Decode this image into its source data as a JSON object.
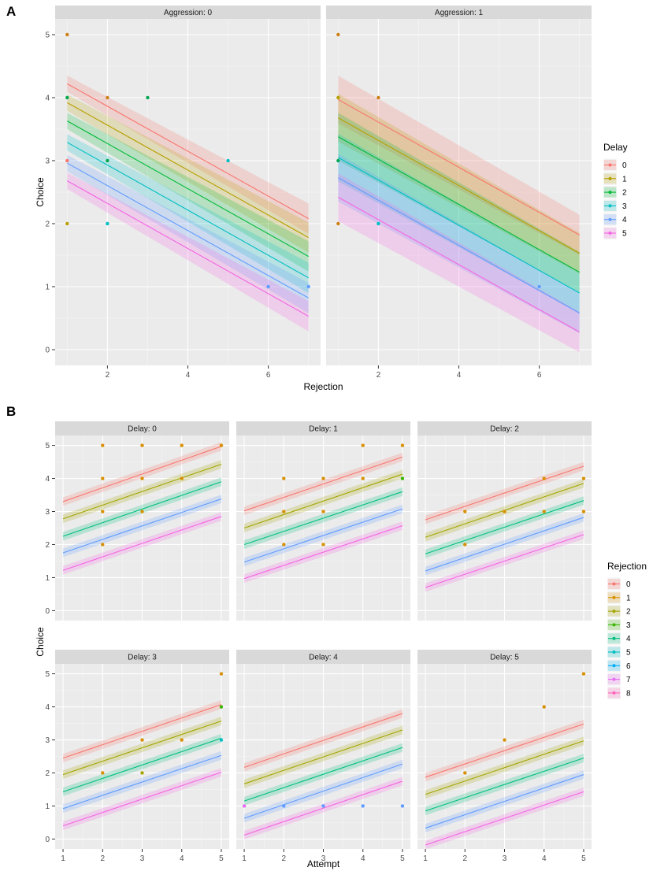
{
  "figure": {
    "tag_a": "A",
    "tag_b": "B"
  },
  "chart_data": [
    {
      "type": "line",
      "id": "A",
      "title": "",
      "xlabel": "Rejection",
      "ylabel": "Choice",
      "xlim": [
        0.7,
        7.3
      ],
      "ylim": [
        -0.25,
        5.25
      ],
      "xticks": [
        2,
        4,
        6
      ],
      "yticks": [
        0,
        1,
        2,
        3,
        4,
        5
      ],
      "facet_var": "Aggression",
      "facets": [
        {
          "label": "Aggression: 0",
          "x_range": [
            1,
            7
          ],
          "ci": [
            0.13,
            0.24
          ]
        },
        {
          "label": "Aggression: 1",
          "x_range": [
            1,
            7
          ],
          "ci": [
            0.38,
            0.32
          ]
        }
      ],
      "legend": {
        "title": "Delay",
        "position": "right",
        "entries": [
          "0",
          "1",
          "2",
          "3",
          "4",
          "5"
        ]
      },
      "colors": [
        "#F8766D",
        "#B79F00",
        "#00BA38",
        "#00BFC4",
        "#619CFF",
        "#F564E3"
      ],
      "series": [
        {
          "name": "0",
          "lines": [
            {
              "x": [
                1,
                7
              ],
              "y": [
                4.22,
                2.08
              ]
            },
            {
              "x": [
                1,
                7
              ],
              "y": [
                3.97,
                1.82
              ]
            }
          ]
        },
        {
          "name": "1",
          "lines": [
            {
              "x": [
                1,
                7
              ],
              "y": [
                3.92,
                1.78
              ]
            },
            {
              "x": [
                1,
                7
              ],
              "y": [
                3.68,
                1.53
              ]
            }
          ]
        },
        {
          "name": "2",
          "lines": [
            {
              "x": [
                1,
                7
              ],
              "y": [
                3.63,
                1.48
              ]
            },
            {
              "x": [
                1,
                7
              ],
              "y": [
                3.38,
                1.23
              ]
            }
          ]
        },
        {
          "name": "3",
          "lines": [
            {
              "x": [
                1,
                7
              ],
              "y": [
                3.29,
                1.14
              ]
            },
            {
              "x": [
                1,
                7
              ],
              "y": [
                3.05,
                0.9
              ]
            }
          ]
        },
        {
          "name": "4",
          "lines": [
            {
              "x": [
                1,
                7
              ],
              "y": [
                2.96,
                0.82
              ]
            },
            {
              "x": [
                1,
                7
              ],
              "y": [
                2.73,
                0.58
              ]
            }
          ]
        },
        {
          "name": "5",
          "lines": [
            {
              "x": [
                1,
                7
              ],
              "y": [
                2.68,
                0.53
              ]
            },
            {
              "x": [
                1,
                7
              ],
              "y": [
                2.42,
                0.28
              ]
            }
          ]
        }
      ],
      "points": [
        [
          {
            "x": 1,
            "y": 5,
            "c": "#CD7F14"
          },
          {
            "x": 1,
            "y": 4,
            "c": "#00A651"
          },
          {
            "x": 1,
            "y": 3,
            "c": "#F8766D"
          },
          {
            "x": 1,
            "y": 2,
            "c": "#B79F00"
          },
          {
            "x": 2,
            "y": 4,
            "c": "#CD7F14"
          },
          {
            "x": 2,
            "y": 3,
            "c": "#00A651"
          },
          {
            "x": 2,
            "y": 2,
            "c": "#00BFC4"
          },
          {
            "x": 3,
            "y": 4,
            "c": "#00A651"
          },
          {
            "x": 5,
            "y": 3,
            "c": "#00BFC4"
          },
          {
            "x": 6,
            "y": 1,
            "c": "#619CFF"
          },
          {
            "x": 7,
            "y": 1,
            "c": "#619CFF"
          }
        ],
        [
          {
            "x": 1,
            "y": 5,
            "c": "#CD7F14"
          },
          {
            "x": 1,
            "y": 4,
            "c": "#B79F00"
          },
          {
            "x": 1,
            "y": 3,
            "c": "#00A651"
          },
          {
            "x": 1,
            "y": 2,
            "c": "#CD7F14"
          },
          {
            "x": 2,
            "y": 4,
            "c": "#CD7F14"
          },
          {
            "x": 2,
            "y": 2,
            "c": "#00BFC4"
          },
          {
            "x": 6,
            "y": 1,
            "c": "#619CFF"
          }
        ]
      ]
    },
    {
      "type": "line",
      "id": "B",
      "title": "",
      "xlabel": "Attempt",
      "ylabel": "Choice",
      "xlim": [
        0.8,
        5.2
      ],
      "ylim": [
        -0.3,
        5.3
      ],
      "xticks": [
        1,
        2,
        3,
        4,
        5
      ],
      "yticks": [
        0,
        1,
        2,
        3,
        4,
        5
      ],
      "facet_var": "Delay",
      "legend": {
        "title": "Rejection",
        "position": "right",
        "entries": [
          "0",
          "1",
          "2",
          "3",
          "4",
          "5",
          "6",
          "7",
          "8"
        ]
      },
      "colors": [
        "#F8766D",
        "#D89000",
        "#A3A500",
        "#39B600",
        "#00BF7D",
        "#00BFC4",
        "#00B0F6",
        "#E76BF3",
        "#FF62BC"
      ],
      "line_colors": [
        "#F8766D",
        "#A3A500",
        "#00BF7D",
        "#619CFF",
        "#F564E3"
      ],
      "line_names": [
        "0",
        "2",
        "4",
        "6",
        "8"
      ],
      "facets": [
        {
          "label": "Delay: 0",
          "lines": [
            {
              "y": [
                3.3,
                4.97
              ]
            },
            {
              "y": [
                2.78,
                4.43
              ]
            },
            {
              "y": [
                2.25,
                3.9
              ]
            },
            {
              "y": [
                1.75,
                3.38
              ]
            },
            {
              "y": [
                1.22,
                2.85
              ]
            }
          ],
          "points": [
            {
              "x": 2,
              "y": 5,
              "c": "#D89000"
            },
            {
              "x": 2,
              "y": 4,
              "c": "#D89000"
            },
            {
              "x": 2,
              "y": 3,
              "c": "#D89000"
            },
            {
              "x": 2,
              "y": 2,
              "c": "#D89000"
            },
            {
              "x": 3,
              "y": 5,
              "c": "#D89000"
            },
            {
              "x": 3,
              "y": 4,
              "c": "#D89000"
            },
            {
              "x": 3,
              "y": 3,
              "c": "#D89000"
            },
            {
              "x": 4,
              "y": 5,
              "c": "#D89000"
            },
            {
              "x": 4,
              "y": 4,
              "c": "#D89000"
            },
            {
              "x": 5,
              "y": 5,
              "c": "#D89000"
            }
          ]
        },
        {
          "label": "Delay: 1",
          "lines": [
            {
              "y": [
                3.02,
                4.65
              ]
            },
            {
              "y": [
                2.5,
                4.13
              ]
            },
            {
              "y": [
                2.0,
                3.6
              ]
            },
            {
              "y": [
                1.47,
                3.08
              ]
            },
            {
              "y": [
                0.97,
                2.57
              ]
            }
          ],
          "points": [
            {
              "x": 2,
              "y": 4,
              "c": "#D89000"
            },
            {
              "x": 2,
              "y": 3,
              "c": "#D89000"
            },
            {
              "x": 2,
              "y": 2,
              "c": "#D89000"
            },
            {
              "x": 3,
              "y": 4,
              "c": "#D89000"
            },
            {
              "x": 3,
              "y": 3,
              "c": "#D89000"
            },
            {
              "x": 3,
              "y": 2,
              "c": "#D89000"
            },
            {
              "x": 4,
              "y": 5,
              "c": "#D89000"
            },
            {
              "x": 4,
              "y": 4,
              "c": "#D89000"
            },
            {
              "x": 5,
              "y": 5,
              "c": "#D89000"
            },
            {
              "x": 5,
              "y": 4,
              "c": "#39B600"
            }
          ]
        },
        {
          "label": "Delay: 2",
          "lines": [
            {
              "y": [
                2.75,
                4.37
              ]
            },
            {
              "y": [
                2.22,
                3.85
              ]
            },
            {
              "y": [
                1.72,
                3.33
              ]
            },
            {
              "y": [
                1.2,
                2.82
              ]
            },
            {
              "y": [
                0.7,
                2.3
              ]
            }
          ],
          "points": [
            {
              "x": 2,
              "y": 3,
              "c": "#D89000"
            },
            {
              "x": 2,
              "y": 2,
              "c": "#D89000"
            },
            {
              "x": 3,
              "y": 3,
              "c": "#D89000"
            },
            {
              "x": 4,
              "y": 4,
              "c": "#D89000"
            },
            {
              "x": 4,
              "y": 3,
              "c": "#D89000"
            },
            {
              "x": 5,
              "y": 4,
              "c": "#D89000"
            },
            {
              "x": 5,
              "y": 3,
              "c": "#D89000"
            }
          ]
        },
        {
          "label": "Delay: 3",
          "lines": [
            {
              "y": [
                2.45,
                4.07
              ]
            },
            {
              "y": [
                1.95,
                3.57
              ]
            },
            {
              "y": [
                1.43,
                3.05
              ]
            },
            {
              "y": [
                0.92,
                2.53
              ]
            },
            {
              "y": [
                0.4,
                2.02
              ]
            }
          ],
          "points": [
            {
              "x": 2,
              "y": 2,
              "c": "#D89000"
            },
            {
              "x": 3,
              "y": 3,
              "c": "#D89000"
            },
            {
              "x": 3,
              "y": 2,
              "c": "#A3A500"
            },
            {
              "x": 4,
              "y": 3,
              "c": "#D89000"
            },
            {
              "x": 5,
              "y": 5,
              "c": "#D89000"
            },
            {
              "x": 5,
              "y": 4,
              "c": "#39B600"
            },
            {
              "x": 5,
              "y": 3,
              "c": "#00BFC4"
            }
          ]
        },
        {
          "label": "Delay: 4",
          "lines": [
            {
              "y": [
                2.17,
                3.8
              ]
            },
            {
              "y": [
                1.67,
                3.3
              ]
            },
            {
              "y": [
                1.15,
                2.77
              ]
            },
            {
              "y": [
                0.63,
                2.27
              ]
            },
            {
              "y": [
                0.12,
                1.75
              ]
            }
          ],
          "points": [
            {
              "x": 1,
              "y": 1,
              "c": "#E76BF3"
            },
            {
              "x": 2,
              "y": 1,
              "c": "#619CFF"
            },
            {
              "x": 3,
              "y": 1,
              "c": "#619CFF"
            },
            {
              "x": 4,
              "y": 1,
              "c": "#619CFF"
            },
            {
              "x": 5,
              "y": 1,
              "c": "#619CFF"
            }
          ]
        },
        {
          "label": "Delay: 5",
          "lines": [
            {
              "y": [
                1.87,
                3.48
              ]
            },
            {
              "y": [
                1.35,
                2.97
              ]
            },
            {
              "y": [
                0.85,
                2.45
              ]
            },
            {
              "y": [
                0.33,
                1.95
              ]
            },
            {
              "y": [
                -0.18,
                1.43
              ]
            }
          ],
          "points": [
            {
              "x": 2,
              "y": 2,
              "c": "#D89000"
            },
            {
              "x": 3,
              "y": 3,
              "c": "#D89000"
            },
            {
              "x": 4,
              "y": 4,
              "c": "#D89000"
            },
            {
              "x": 5,
              "y": 5,
              "c": "#D89000"
            }
          ]
        }
      ]
    }
  ]
}
